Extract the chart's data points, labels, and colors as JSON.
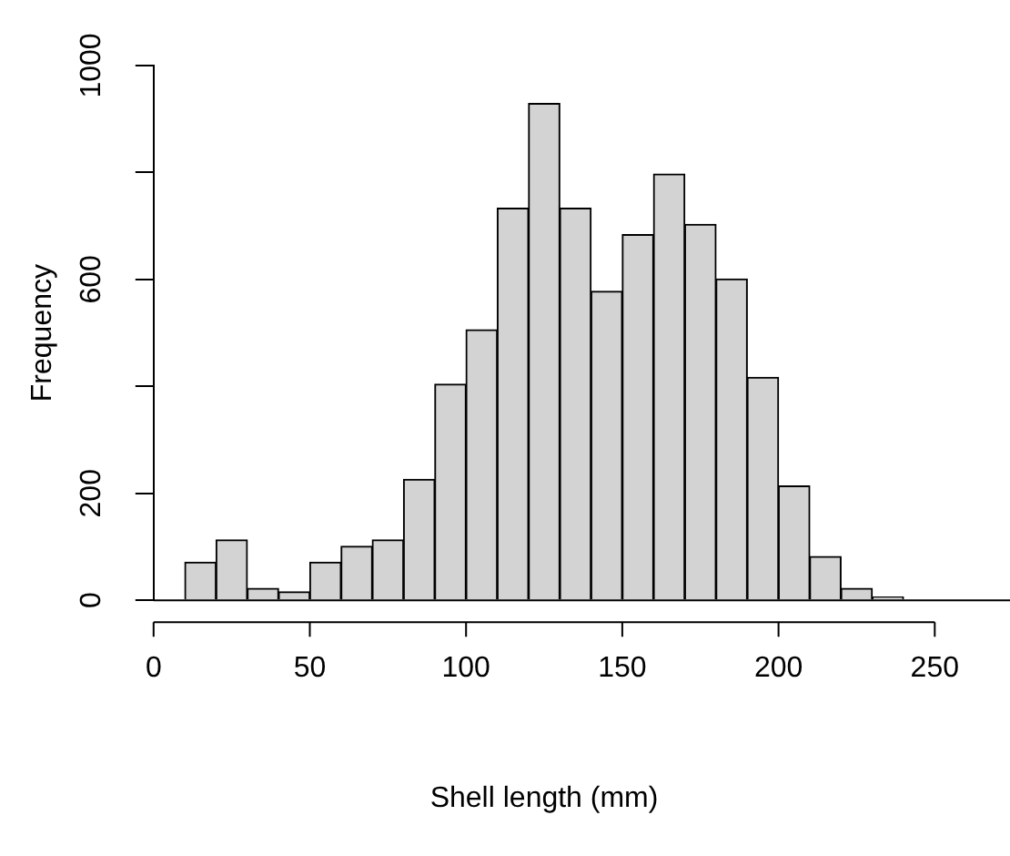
{
  "chart_data": {
    "type": "histogram",
    "xlabel": "Shell length (mm)",
    "ylabel": "Frequency",
    "bins": [
      10,
      20,
      30,
      40,
      50,
      60,
      70,
      80,
      90,
      100,
      110,
      120,
      130,
      140,
      150,
      160,
      170,
      180,
      190,
      200,
      210,
      220,
      230,
      240
    ],
    "values": [
      71,
      113,
      22,
      16,
      71,
      101,
      113,
      226,
      404,
      506,
      733,
      929,
      733,
      578,
      684,
      797,
      703,
      601,
      417,
      214,
      82,
      22,
      6
    ],
    "color": "#d3d3d3",
    "xlim": [
      0,
      250
    ],
    "xticks": [
      0,
      50,
      100,
      150,
      200,
      250
    ],
    "ylim": [
      0,
      1000
    ],
    "yticks": [
      0,
      200,
      {
        "value": 400,
        "label": null
      },
      600,
      {
        "value": 800,
        "label": null
      },
      1000
    ],
    "ref_lines": [
      {
        "axis": "y",
        "value": 0
      }
    ],
    "grid": false,
    "legend": false
  }
}
